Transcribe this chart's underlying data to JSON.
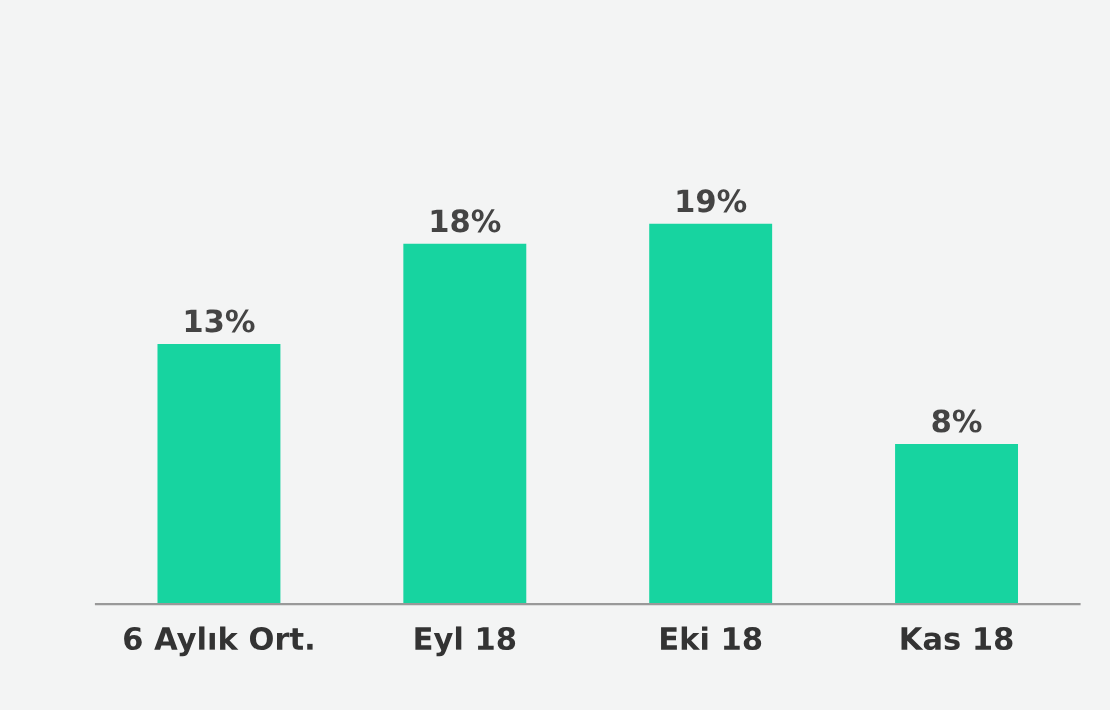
{
  "chart_data": {
    "type": "bar",
    "categories": [
      "6 Aylık Ort.",
      "Eyl 18",
      "Eki 18",
      "Kas 18"
    ],
    "values": [
      13,
      18,
      19,
      8
    ],
    "value_labels": [
      "13%",
      "18%",
      "19%",
      "8%"
    ],
    "color": "#17d4a0",
    "tick_labels": "x",
    "grid": false,
    "legend": false
  }
}
